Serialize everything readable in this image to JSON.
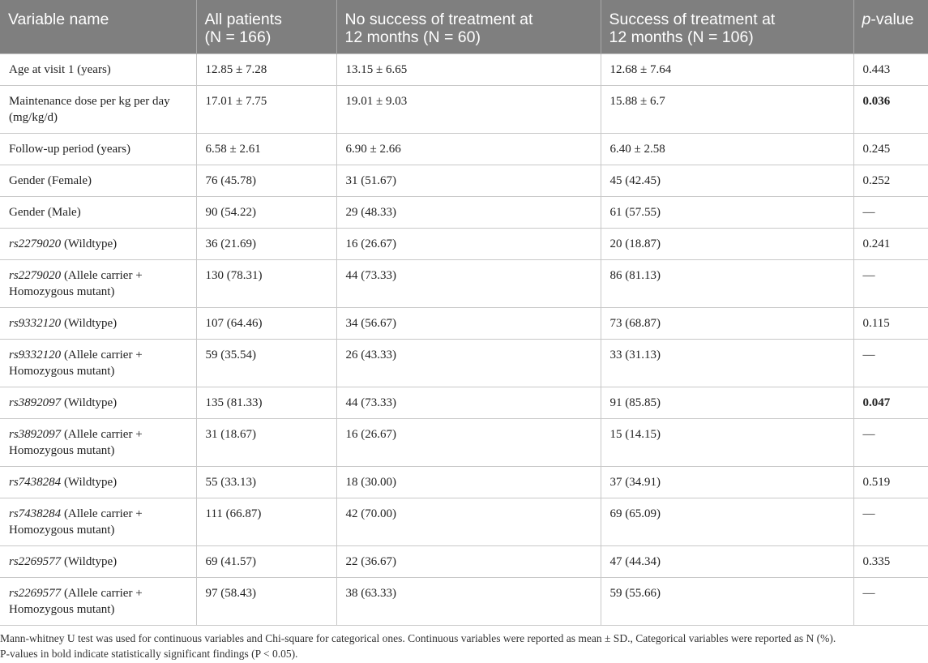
{
  "table": {
    "headers": [
      {
        "line1": "Variable name",
        "line2": ""
      },
      {
        "line1": "All patients",
        "line2": "(N = 166)"
      },
      {
        "line1": "No success of treatment at",
        "line2": "12 months (N = 60)"
      },
      {
        "line1": "Success of treatment at",
        "line2": "12 months (N = 106)"
      },
      {
        "line1_italic": "p",
        "line1": "-value",
        "line2": ""
      }
    ],
    "rows": [
      {
        "var_italic": "",
        "var": "Age at visit 1 (years)",
        "var2": "",
        "all": "12.85 ± 7.28",
        "no_success": "13.15 ± 6.65",
        "success": "12.68 ± 7.64",
        "p": "0.443",
        "p_bold": false
      },
      {
        "var_italic": "",
        "var": "Maintenance dose per kg per day",
        "var2": "(mg/kg/d)",
        "all": "17.01 ± 7.75",
        "no_success": "19.01 ± 9.03",
        "success": "15.88 ± 6.7",
        "p": "0.036",
        "p_bold": true
      },
      {
        "var_italic": "",
        "var": "Follow-up period (years)",
        "var2": "",
        "all": "6.58 ± 2.61",
        "no_success": "6.90 ± 2.66",
        "success": "6.40 ± 2.58",
        "p": "0.245",
        "p_bold": false
      },
      {
        "var_italic": "",
        "var": "Gender (Female)",
        "var2": "",
        "all": "76 (45.78)",
        "no_success": "31 (51.67)",
        "success": "45 (42.45)",
        "p": "0.252",
        "p_bold": false
      },
      {
        "var_italic": "",
        "var": "Gender (Male)",
        "var2": "",
        "all": "90 (54.22)",
        "no_success": "29 (48.33)",
        "success": "61 (57.55)",
        "p": "—",
        "p_bold": false
      },
      {
        "var_italic": "rs2279020",
        "var": " (Wildtype)",
        "var2": "",
        "all": "36 (21.69)",
        "no_success": "16 (26.67)",
        "success": "20 (18.87)",
        "p": "0.241",
        "p_bold": false
      },
      {
        "var_italic": "rs2279020",
        "var": " (Allele carrier +",
        "var2": "Homozygous mutant)",
        "all": "130 (78.31)",
        "no_success": "44 (73.33)",
        "success": "86 (81.13)",
        "p": "—",
        "p_bold": false
      },
      {
        "var_italic": "rs9332120",
        "var": " (Wildtype)",
        "var2": "",
        "all": "107 (64.46)",
        "no_success": "34 (56.67)",
        "success": "73 (68.87)",
        "p": "0.115",
        "p_bold": false
      },
      {
        "var_italic": "rs9332120",
        "var": " (Allele carrier +",
        "var2": "Homozygous mutant)",
        "all": "59 (35.54)",
        "no_success": "26 (43.33)",
        "success": "33 (31.13)",
        "p": "—",
        "p_bold": false
      },
      {
        "var_italic": "rs3892097",
        "var": " (Wildtype)",
        "var2": "",
        "all": "135 (81.33)",
        "no_success": "44 (73.33)",
        "success": "91 (85.85)",
        "p": "0.047",
        "p_bold": true
      },
      {
        "var_italic": "rs3892097",
        "var": " (Allele carrier +",
        "var2": "Homozygous mutant)",
        "all": "31 (18.67)",
        "no_success": "16 (26.67)",
        "success": "15 (14.15)",
        "p": "—",
        "p_bold": false
      },
      {
        "var_italic": "rs7438284",
        "var": " (Wildtype)",
        "var2": "",
        "all": "55 (33.13)",
        "no_success": "18 (30.00)",
        "success": "37 (34.91)",
        "p": "0.519",
        "p_bold": false
      },
      {
        "var_italic": "rs7438284",
        "var": " (Allele carrier +",
        "var2": "Homozygous mutant)",
        "all": "111 (66.87)",
        "no_success": "42 (70.00)",
        "success": "69 (65.09)",
        "p": "—",
        "p_bold": false
      },
      {
        "var_italic": "rs2269577",
        "var": " (Wildtype)",
        "var2": "",
        "all": "69 (41.57)",
        "no_success": "22 (36.67)",
        "success": "47 (44.34)",
        "p": "0.335",
        "p_bold": false
      },
      {
        "var_italic": "rs2269577",
        "var": " (Allele carrier +",
        "var2": "Homozygous mutant)",
        "all": "97 (58.43)",
        "no_success": "38 (63.33)",
        "success": "59 (55.66)",
        "p": "—",
        "p_bold": false
      }
    ]
  },
  "footnote": {
    "line1": "Mann-whitney U test was used for continuous variables and Chi-square for categorical ones. Continuous variables were reported as mean ± SD., Categorical variables were reported as N (%).",
    "line2": "P-values in bold indicate statistically significant findings (P < 0.05)."
  }
}
